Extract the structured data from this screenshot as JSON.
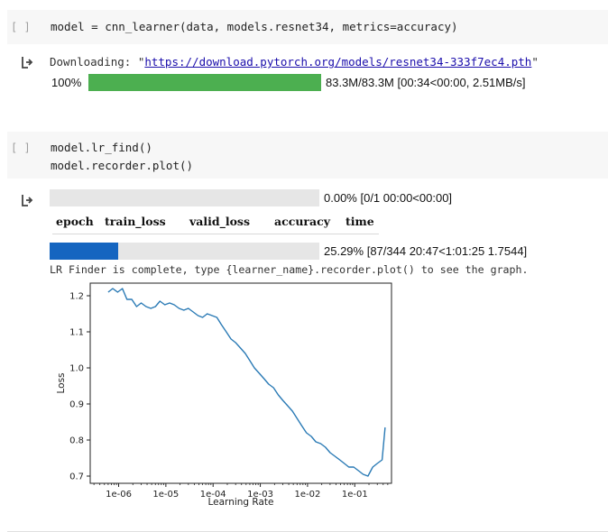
{
  "cell1": {
    "bracket": "[ ]",
    "code": "model = cnn_learner(data, models.resnet34, metrics=accuracy)"
  },
  "out1": {
    "download_prefix": "Downloading: \"",
    "download_url": "https://download.pytorch.org/models/resnet34-333f7ec4.pth",
    "download_suffix": "\"",
    "pct_label": "100%",
    "progress": 1.0,
    "status": "83.3M/83.3M [00:34<00:00, 2.51MB/s]"
  },
  "cell2": {
    "bracket": "[ ]",
    "lines": [
      "model.lr_find()",
      "model.recorder.plot()"
    ]
  },
  "out2": {
    "epoch_progress": 0.0,
    "epoch_status": "0.00% [0/1 00:00<00:00]",
    "headers": [
      "epoch",
      "train_loss",
      "valid_loss",
      "accuracy",
      "time"
    ],
    "batch_progress": 0.2529,
    "batch_status": "25.29% [87/344 20:47<1:01:25 1.7544]",
    "finder_msg": "LR Finder is complete, type {learner_name}.recorder.plot() to see the graph."
  },
  "colors": {
    "green_bar": "#4caf50",
    "blue_bar": "#1565c0",
    "line": "#2a7ab5"
  },
  "chart_data": {
    "type": "line",
    "xlabel": "Learning Rate",
    "ylabel": "Loss",
    "x_scale": "log",
    "xlim": [
      2.5e-07,
      0.6
    ],
    "ylim": [
      0.68,
      1.235
    ],
    "xticks": [
      {
        "value": 1e-06,
        "label": "1e-06"
      },
      {
        "value": 1e-05,
        "label": "1e-05"
      },
      {
        "value": 0.0001,
        "label": "1e-04"
      },
      {
        "value": 0.001,
        "label": "1e-03"
      },
      {
        "value": 0.01,
        "label": "1e-02"
      },
      {
        "value": 0.1,
        "label": "1e-01"
      }
    ],
    "yticks": [
      0.7,
      0.8,
      0.9,
      1.0,
      1.1,
      1.2
    ],
    "series": [
      {
        "x": [
          6e-07,
          7.5e-07,
          9.5e-07,
          1.2e-06,
          1.5e-06,
          1.9e-06,
          2.4e-06,
          3e-06,
          3.8e-06,
          4.8e-06,
          6e-06,
          7.5e-06,
          9.5e-06,
          1.2e-05,
          1.5e-05,
          1.9e-05,
          2.4e-05,
          3e-05,
          3.8e-05,
          4.8e-05,
          6e-05,
          7.5e-05,
          9.5e-05,
          0.00012,
          0.00015,
          0.00019,
          0.00024,
          0.0003,
          0.00038,
          0.00048,
          0.0006,
          0.00075,
          0.00095,
          0.0012,
          0.0015,
          0.0019,
          0.0024,
          0.003,
          0.0038,
          0.0048,
          0.006,
          0.0075,
          0.0095,
          0.012,
          0.015,
          0.019,
          0.024,
          0.03,
          0.038,
          0.048,
          0.06,
          0.075,
          0.095,
          0.12,
          0.15,
          0.19,
          0.24,
          0.3,
          0.38,
          0.44
        ],
        "y": [
          1.21,
          1.22,
          1.21,
          1.22,
          1.19,
          1.19,
          1.17,
          1.18,
          1.17,
          1.165,
          1.17,
          1.185,
          1.175,
          1.18,
          1.175,
          1.165,
          1.16,
          1.165,
          1.155,
          1.145,
          1.14,
          1.15,
          1.145,
          1.14,
          1.12,
          1.1,
          1.08,
          1.07,
          1.055,
          1.04,
          1.02,
          1.0,
          0.985,
          0.97,
          0.955,
          0.945,
          0.925,
          0.91,
          0.895,
          0.88,
          0.86,
          0.84,
          0.82,
          0.81,
          0.795,
          0.79,
          0.78,
          0.765,
          0.755,
          0.745,
          0.735,
          0.725,
          0.725,
          0.715,
          0.705,
          0.7,
          0.725,
          0.735,
          0.745,
          0.835
        ]
      }
    ]
  }
}
